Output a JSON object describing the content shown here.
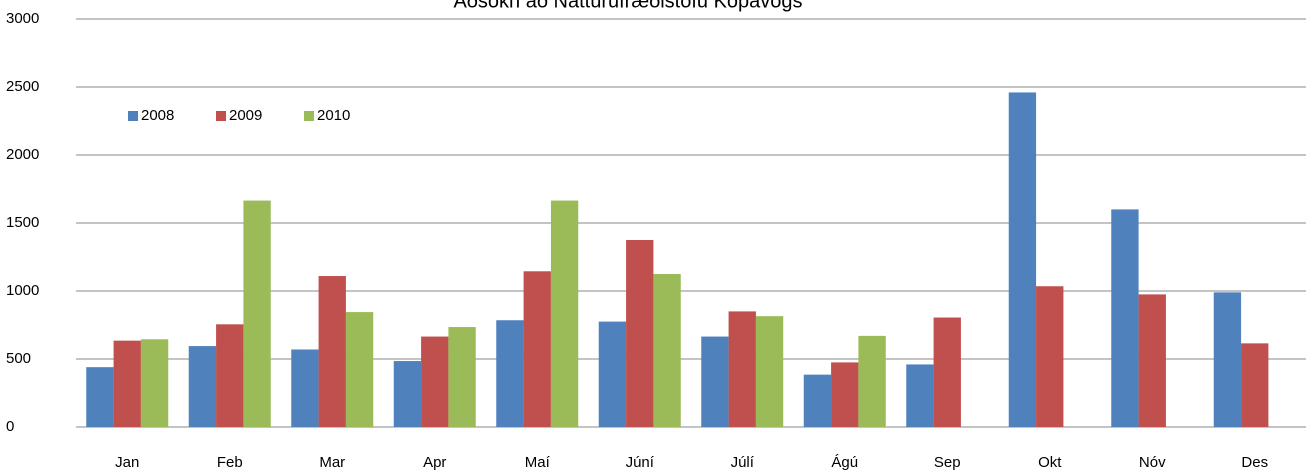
{
  "chart_data": {
    "type": "bar",
    "title": "Aðsókn að Náttúrufræðistofu Kópavogs",
    "categories": [
      "Jan",
      "Feb",
      "Mar",
      "Apr",
      "Maí",
      "Júní",
      "Júlí",
      "Ágú",
      "Sep",
      "Okt",
      "Nóv",
      "Des"
    ],
    "series": [
      {
        "name": "2008",
        "color": "#4f81bd",
        "values": [
          440,
          595,
          570,
          485,
          785,
          775,
          665,
          385,
          460,
          2460,
          1600,
          990
        ]
      },
      {
        "name": "2009",
        "color": "#c0504d",
        "values": [
          635,
          755,
          1110,
          665,
          1145,
          1375,
          850,
          475,
          805,
          1035,
          975,
          615
        ]
      },
      {
        "name": "2010",
        "color": "#9bbb59",
        "values": [
          645,
          1665,
          845,
          735,
          1665,
          1125,
          815,
          670,
          null,
          null,
          null,
          null
        ]
      }
    ],
    "ylim": [
      0,
      3000
    ],
    "yticks": [
      0,
      500,
      1000,
      1500,
      2000,
      2500,
      3000
    ],
    "grid": true,
    "legend": "upper left"
  }
}
